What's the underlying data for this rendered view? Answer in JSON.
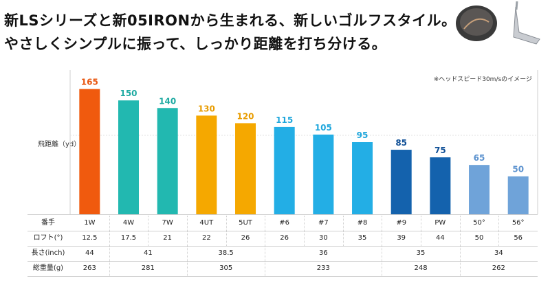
{
  "headline": {
    "line1": "新LSシリーズと新05IRONから生まれる、新しいゴルフスタイル。",
    "line2": "やさしくシンプルに振って、しっかり距離を打ち分ける。"
  },
  "note": "※ヘッドスピード30m/sのイメージ",
  "chart_data": {
    "type": "bar",
    "ylabel": "飛距離（yd）",
    "categories": [
      "1W",
      "4W",
      "7W",
      "4UT",
      "5UT",
      "#6",
      "#7",
      "#8",
      "#9",
      "PW",
      "50°",
      "56°"
    ],
    "values": [
      165,
      150,
      140,
      130,
      120,
      115,
      105,
      95,
      85,
      75,
      65,
      50
    ],
    "colors": [
      "#f05a0e",
      "#22b8b0",
      "#22b8b0",
      "#f5a800",
      "#f5a800",
      "#23aee5",
      "#23aee5",
      "#23aee5",
      "#1462ad",
      "#1462ad",
      "#6fa3d9",
      "#6fa3d9"
    ],
    "label_colors": [
      "#e8540c",
      "#1eaaa2",
      "#1eaaa2",
      "#e89c00",
      "#e89c00",
      "#1ea6dc",
      "#1ea6dc",
      "#1ea6dc",
      "#0f4f96",
      "#0f4f96",
      "#5d93cf",
      "#5d93cf"
    ],
    "ylim": [
      0,
      190
    ],
    "grid": false
  },
  "table": {
    "row_labels": [
      "番手",
      "ロフト(°)",
      "長さ(inch)",
      "総重量(g)"
    ],
    "clubs": [
      "1W",
      "4W",
      "7W",
      "4UT",
      "5UT",
      "#6",
      "#7",
      "#8",
      "#9",
      "PW",
      "50°",
      "56°"
    ],
    "loft": [
      "12.5",
      "17.5",
      "21",
      "22",
      "26",
      "26",
      "30",
      "35",
      "39",
      "44",
      "50",
      "56"
    ],
    "length": [
      {
        "value": "44",
        "span": 1
      },
      {
        "value": "41",
        "span": 2
      },
      {
        "value": "38.5",
        "span": 2
      },
      {
        "value": "36",
        "span": 3
      },
      {
        "value": "35",
        "span": 2
      },
      {
        "value": "34",
        "span": 2
      }
    ],
    "weight": [
      {
        "value": "263",
        "span": 1
      },
      {
        "value": "281",
        "span": 2
      },
      {
        "value": "305",
        "span": 2
      },
      {
        "value": "233",
        "span": 3
      },
      {
        "value": "248",
        "span": 2
      },
      {
        "value": "262",
        "span": 2
      }
    ]
  }
}
